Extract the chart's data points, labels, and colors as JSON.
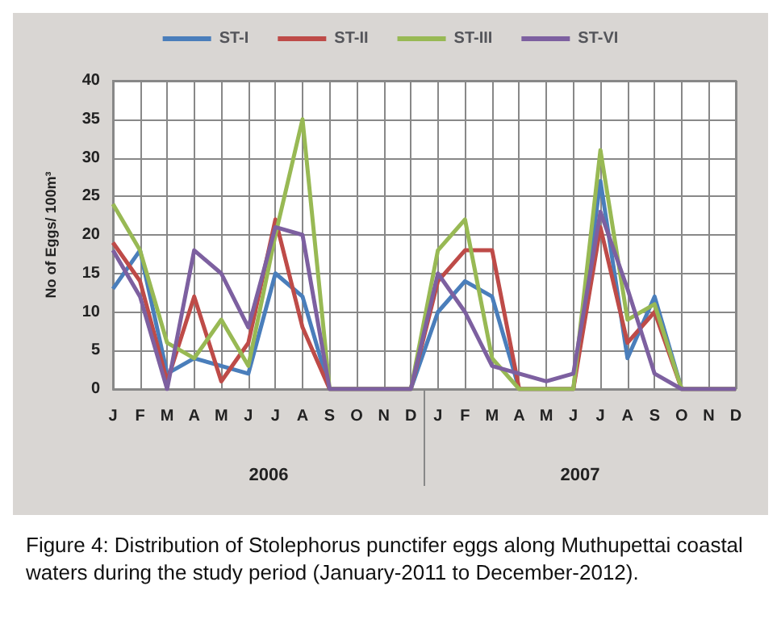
{
  "chart_data": {
    "type": "line",
    "ylabel": "No of Eggs/ 100m³",
    "categories": [
      "J",
      "F",
      "M",
      "A",
      "M",
      "J",
      "J",
      "A",
      "S",
      "O",
      "N",
      "D",
      "J",
      "F",
      "M",
      "A",
      "M",
      "J",
      "J",
      "A",
      "S",
      "O",
      "N",
      "D"
    ],
    "series": [
      {
        "name": "ST-I",
        "color": "#4a7ebb",
        "values": [
          13,
          18,
          2,
          4,
          3,
          2,
          15,
          12,
          0,
          0,
          0,
          0,
          10,
          14,
          12,
          0,
          0,
          0,
          27,
          4,
          12,
          0,
          0,
          0
        ]
      },
      {
        "name": "ST-II",
        "color": "#be4b48",
        "values": [
          19,
          14,
          1,
          12,
          1,
          6,
          22,
          8,
          0,
          0,
          0,
          0,
          14,
          18,
          18,
          0,
          0,
          0,
          21,
          6,
          10,
          0,
          0,
          0
        ]
      },
      {
        "name": "ST-III",
        "color": "#98b954",
        "values": [
          24,
          18,
          6,
          4,
          9,
          3,
          20,
          35,
          0,
          0,
          0,
          0,
          18,
          22,
          4,
          0,
          0,
          0,
          31,
          9,
          11,
          0,
          0,
          0
        ]
      },
      {
        "name": "ST-VI",
        "color": "#7d60a0",
        "values": [
          18,
          12,
          0,
          18,
          15,
          8,
          21,
          20,
          0,
          0,
          0,
          0,
          15,
          10,
          3,
          2,
          1,
          2,
          23,
          13,
          2,
          0,
          0,
          0
        ]
      }
    ],
    "ylim": [
      0,
      40
    ],
    "yticks": [
      0,
      5,
      10,
      15,
      20,
      25,
      30,
      35,
      40
    ],
    "grid": true,
    "legend": "top",
    "marker": "none",
    "line_style": "solid",
    "annotations": [
      "2006",
      "2007",
      "Figure 4: Distribution of Stolephorus punctifer eggs along Muthupettai coastal waters during the study period (January-2011 to December-2012)."
    ]
  }
}
